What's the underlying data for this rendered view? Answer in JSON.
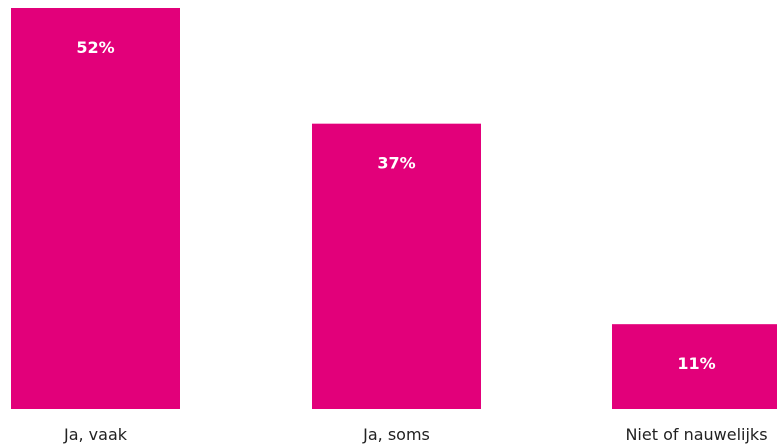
{
  "chart_data": {
    "type": "bar",
    "categories": [
      "Ja, vaak",
      "Ja, soms",
      "Niet of nauwelijks"
    ],
    "values": [
      52,
      37,
      11
    ],
    "value_labels": [
      "52%",
      "37%",
      "11%"
    ],
    "ylim": [
      0,
      52
    ],
    "grid": false,
    "bar_color": "#E2007A"
  }
}
